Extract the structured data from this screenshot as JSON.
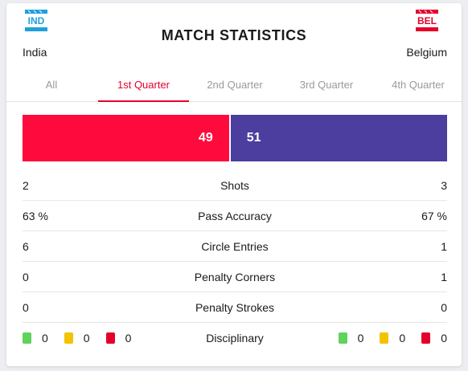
{
  "title": "MATCH STATISTICS",
  "teams": {
    "home": {
      "code": "IND",
      "name": "India",
      "flag_color": "#1fa0d8"
    },
    "away": {
      "code": "BEL",
      "name": "Belgium",
      "flag_color": "#e4002b"
    }
  },
  "tabs": [
    {
      "label": "All",
      "active": false
    },
    {
      "label": "1st Quarter",
      "active": true
    },
    {
      "label": "2nd Quarter",
      "active": false
    },
    {
      "label": "3rd Quarter",
      "active": false
    },
    {
      "label": "4th Quarter",
      "active": false
    }
  ],
  "possession": {
    "home": "49",
    "away": "51",
    "home_color": "#ff0a3c",
    "away_color": "#4b3e9e"
  },
  "stats": [
    {
      "label": "Shots",
      "home": "2",
      "away": "3"
    },
    {
      "label": "Pass Accuracy",
      "home": "63 %",
      "away": "67 %"
    },
    {
      "label": "Circle Entries",
      "home": "6",
      "away": "1"
    },
    {
      "label": "Penalty Corners",
      "home": "0",
      "away": "1"
    },
    {
      "label": "Penalty Strokes",
      "home": "0",
      "away": "0"
    }
  ],
  "disciplinary": {
    "label": "Disciplinary",
    "home": {
      "green": "0",
      "yellow": "0",
      "red": "0"
    },
    "away": {
      "green": "0",
      "yellow": "0",
      "red": "0"
    }
  }
}
